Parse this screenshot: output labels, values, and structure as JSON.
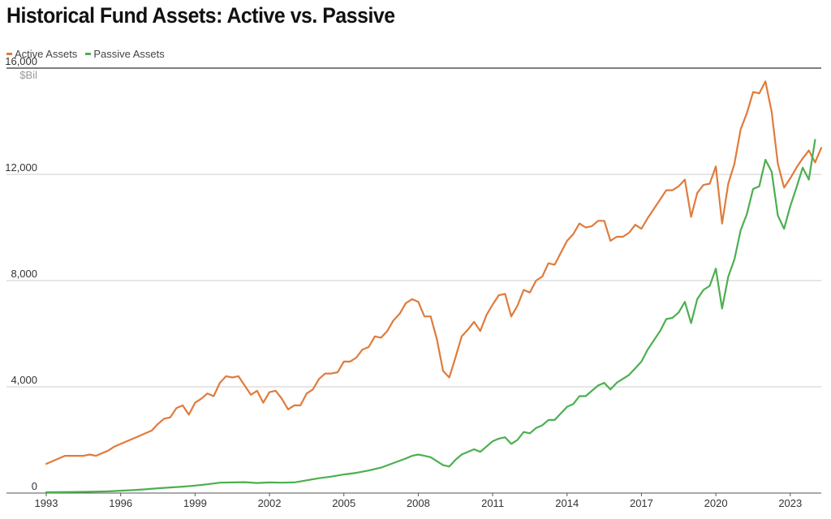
{
  "chart_data": {
    "type": "line",
    "title": "Historical Fund Assets: Active vs. Passive",
    "ylabel": "$Bil",
    "ylim": [
      0,
      16000
    ],
    "xlim": [
      1993,
      2024.25
    ],
    "y_ticks": [
      {
        "value": 0,
        "label": "0"
      },
      {
        "value": 4000,
        "label": "4,000"
      },
      {
        "value": 8000,
        "label": "8,000"
      },
      {
        "value": 12000,
        "label": "12,000"
      },
      {
        "value": 16000,
        "label": "16,000"
      }
    ],
    "x_ticks": [
      {
        "value": 1993,
        "label": "1993"
      },
      {
        "value": 1996,
        "label": "1996"
      },
      {
        "value": 1999,
        "label": "1999"
      },
      {
        "value": 2002,
        "label": "2002"
      },
      {
        "value": 2005,
        "label": "2005"
      },
      {
        "value": 2008,
        "label": "2008"
      },
      {
        "value": 2011,
        "label": "2011"
      },
      {
        "value": 2014,
        "label": "2014"
      },
      {
        "value": 2017,
        "label": "2017"
      },
      {
        "value": 2020,
        "label": "2020"
      },
      {
        "value": 2023,
        "label": "2023"
      }
    ],
    "grid": "horizontal",
    "legend_position": "top-left",
    "series": [
      {
        "name": "Active Assets",
        "color": "#e07b3c",
        "points": [
          [
            1993.0,
            1100
          ],
          [
            1993.25,
            1200
          ],
          [
            1993.5,
            1300
          ],
          [
            1993.75,
            1400
          ],
          [
            1994.0,
            1400
          ],
          [
            1994.25,
            1400
          ],
          [
            1994.5,
            1400
          ],
          [
            1994.75,
            1450
          ],
          [
            1995.0,
            1400
          ],
          [
            1995.25,
            1500
          ],
          [
            1995.5,
            1600
          ],
          [
            1995.75,
            1750
          ],
          [
            1996.0,
            1850
          ],
          [
            1996.25,
            1950
          ],
          [
            1996.5,
            2050
          ],
          [
            1996.75,
            2150
          ],
          [
            1997.0,
            2250
          ],
          [
            1997.25,
            2350
          ],
          [
            1997.5,
            2600
          ],
          [
            1997.75,
            2800
          ],
          [
            1998.0,
            2850
          ],
          [
            1998.25,
            3200
          ],
          [
            1998.5,
            3300
          ],
          [
            1998.75,
            2950
          ],
          [
            1999.0,
            3400
          ],
          [
            1999.25,
            3550
          ],
          [
            1999.5,
            3750
          ],
          [
            1999.75,
            3650
          ],
          [
            2000.0,
            4150
          ],
          [
            2000.25,
            4400
          ],
          [
            2000.5,
            4350
          ],
          [
            2000.75,
            4400
          ],
          [
            2001.0,
            4050
          ],
          [
            2001.25,
            3700
          ],
          [
            2001.5,
            3850
          ],
          [
            2001.75,
            3400
          ],
          [
            2002.0,
            3800
          ],
          [
            2002.25,
            3850
          ],
          [
            2002.5,
            3550
          ],
          [
            2002.75,
            3150
          ],
          [
            2003.0,
            3300
          ],
          [
            2003.25,
            3300
          ],
          [
            2003.5,
            3750
          ],
          [
            2003.75,
            3900
          ],
          [
            2004.0,
            4300
          ],
          [
            2004.25,
            4500
          ],
          [
            2004.5,
            4500
          ],
          [
            2004.75,
            4550
          ],
          [
            2005.0,
            4950
          ],
          [
            2005.25,
            4950
          ],
          [
            2005.5,
            5100
          ],
          [
            2005.75,
            5400
          ],
          [
            2006.0,
            5500
          ],
          [
            2006.25,
            5900
          ],
          [
            2006.5,
            5850
          ],
          [
            2006.75,
            6100
          ],
          [
            2007.0,
            6500
          ],
          [
            2007.25,
            6750
          ],
          [
            2007.5,
            7150
          ],
          [
            2007.75,
            7300
          ],
          [
            2008.0,
            7200
          ],
          [
            2008.25,
            6650
          ],
          [
            2008.5,
            6650
          ],
          [
            2008.75,
            5800
          ],
          [
            2009.0,
            4600
          ],
          [
            2009.25,
            4350
          ],
          [
            2009.5,
            5100
          ],
          [
            2009.75,
            5900
          ],
          [
            2010.0,
            6150
          ],
          [
            2010.25,
            6450
          ],
          [
            2010.5,
            6100
          ],
          [
            2010.75,
            6700
          ],
          [
            2011.0,
            7100
          ],
          [
            2011.25,
            7450
          ],
          [
            2011.5,
            7500
          ],
          [
            2011.75,
            6650
          ],
          [
            2012.0,
            7050
          ],
          [
            2012.25,
            7650
          ],
          [
            2012.5,
            7550
          ],
          [
            2012.75,
            8000
          ],
          [
            2013.0,
            8150
          ],
          [
            2013.25,
            8650
          ],
          [
            2013.5,
            8600
          ],
          [
            2013.75,
            9050
          ],
          [
            2014.0,
            9500
          ],
          [
            2014.25,
            9750
          ],
          [
            2014.5,
            10150
          ],
          [
            2014.75,
            10000
          ],
          [
            2015.0,
            10050
          ],
          [
            2015.25,
            10250
          ],
          [
            2015.5,
            10250
          ],
          [
            2015.75,
            9500
          ],
          [
            2016.0,
            9650
          ],
          [
            2016.25,
            9650
          ],
          [
            2016.5,
            9800
          ],
          [
            2016.75,
            10100
          ],
          [
            2017.0,
            9950
          ],
          [
            2017.25,
            10350
          ],
          [
            2017.5,
            10700
          ],
          [
            2017.75,
            11050
          ],
          [
            2018.0,
            11400
          ],
          [
            2018.25,
            11400
          ],
          [
            2018.5,
            11550
          ],
          [
            2018.75,
            11800
          ],
          [
            2019.0,
            10400
          ],
          [
            2019.25,
            11300
          ],
          [
            2019.5,
            11600
          ],
          [
            2019.75,
            11650
          ],
          [
            2020.0,
            12300
          ],
          [
            2020.25,
            10150
          ],
          [
            2020.5,
            11650
          ],
          [
            2020.75,
            12400
          ],
          [
            2021.0,
            13700
          ],
          [
            2021.25,
            14300
          ],
          [
            2021.5,
            15100
          ],
          [
            2021.75,
            15050
          ],
          [
            2022.0,
            15500
          ],
          [
            2022.25,
            14350
          ],
          [
            2022.5,
            12400
          ],
          [
            2022.75,
            11500
          ],
          [
            2023.0,
            11850
          ],
          [
            2023.25,
            12250
          ],
          [
            2023.5,
            12600
          ],
          [
            2023.75,
            12900
          ],
          [
            2024.0,
            12450
          ],
          [
            2024.25,
            13000
          ]
        ]
      },
      {
        "name": "Passive Assets",
        "color": "#4caf50",
        "points": [
          [
            1993.0,
            30
          ],
          [
            1993.5,
            35
          ],
          [
            1994.0,
            40
          ],
          [
            1994.5,
            45
          ],
          [
            1995.0,
            55
          ],
          [
            1995.5,
            65
          ],
          [
            1996.0,
            90
          ],
          [
            1996.5,
            110
          ],
          [
            1997.0,
            140
          ],
          [
            1997.5,
            180
          ],
          [
            1998.0,
            210
          ],
          [
            1998.5,
            240
          ],
          [
            1999.0,
            280
          ],
          [
            1999.5,
            330
          ],
          [
            2000.0,
            390
          ],
          [
            2000.5,
            400
          ],
          [
            2001.0,
            410
          ],
          [
            2001.5,
            380
          ],
          [
            2002.0,
            400
          ],
          [
            2002.5,
            390
          ],
          [
            2003.0,
            400
          ],
          [
            2003.5,
            480
          ],
          [
            2004.0,
            560
          ],
          [
            2004.5,
            620
          ],
          [
            2005.0,
            700
          ],
          [
            2005.5,
            760
          ],
          [
            2006.0,
            850
          ],
          [
            2006.5,
            960
          ],
          [
            2007.0,
            1130
          ],
          [
            2007.5,
            1300
          ],
          [
            2007.75,
            1400
          ],
          [
            2008.0,
            1450
          ],
          [
            2008.25,
            1400
          ],
          [
            2008.5,
            1350
          ],
          [
            2008.75,
            1200
          ],
          [
            2009.0,
            1050
          ],
          [
            2009.25,
            1000
          ],
          [
            2009.5,
            1250
          ],
          [
            2009.75,
            1450
          ],
          [
            2010.0,
            1550
          ],
          [
            2010.25,
            1650
          ],
          [
            2010.5,
            1550
          ],
          [
            2010.75,
            1750
          ],
          [
            2011.0,
            1950
          ],
          [
            2011.25,
            2050
          ],
          [
            2011.5,
            2100
          ],
          [
            2011.75,
            1850
          ],
          [
            2012.0,
            2000
          ],
          [
            2012.25,
            2300
          ],
          [
            2012.5,
            2250
          ],
          [
            2012.75,
            2450
          ],
          [
            2013.0,
            2550
          ],
          [
            2013.25,
            2750
          ],
          [
            2013.5,
            2750
          ],
          [
            2013.75,
            3000
          ],
          [
            2014.0,
            3250
          ],
          [
            2014.25,
            3350
          ],
          [
            2014.5,
            3650
          ],
          [
            2014.75,
            3650
          ],
          [
            2015.0,
            3850
          ],
          [
            2015.25,
            4050
          ],
          [
            2015.5,
            4150
          ],
          [
            2015.75,
            3900
          ],
          [
            2016.0,
            4150
          ],
          [
            2016.25,
            4300
          ],
          [
            2016.5,
            4450
          ],
          [
            2016.75,
            4700
          ],
          [
            2017.0,
            4950
          ],
          [
            2017.25,
            5400
          ],
          [
            2017.5,
            5750
          ],
          [
            2017.75,
            6100
          ],
          [
            2018.0,
            6550
          ],
          [
            2018.25,
            6600
          ],
          [
            2018.5,
            6800
          ],
          [
            2018.75,
            7200
          ],
          [
            2019.0,
            6400
          ],
          [
            2019.25,
            7300
          ],
          [
            2019.5,
            7650
          ],
          [
            2019.75,
            7800
          ],
          [
            2020.0,
            8450
          ],
          [
            2020.25,
            6950
          ],
          [
            2020.5,
            8150
          ],
          [
            2020.75,
            8800
          ],
          [
            2021.0,
            9900
          ],
          [
            2021.25,
            10500
          ],
          [
            2021.5,
            11450
          ],
          [
            2021.75,
            11550
          ],
          [
            2022.0,
            12550
          ],
          [
            2022.25,
            12100
          ],
          [
            2022.5,
            10450
          ],
          [
            2022.75,
            9950
          ],
          [
            2023.0,
            10800
          ],
          [
            2023.25,
            11500
          ],
          [
            2023.5,
            12250
          ],
          [
            2023.75,
            11800
          ],
          [
            2024.0,
            13300
          ]
        ]
      }
    ]
  }
}
